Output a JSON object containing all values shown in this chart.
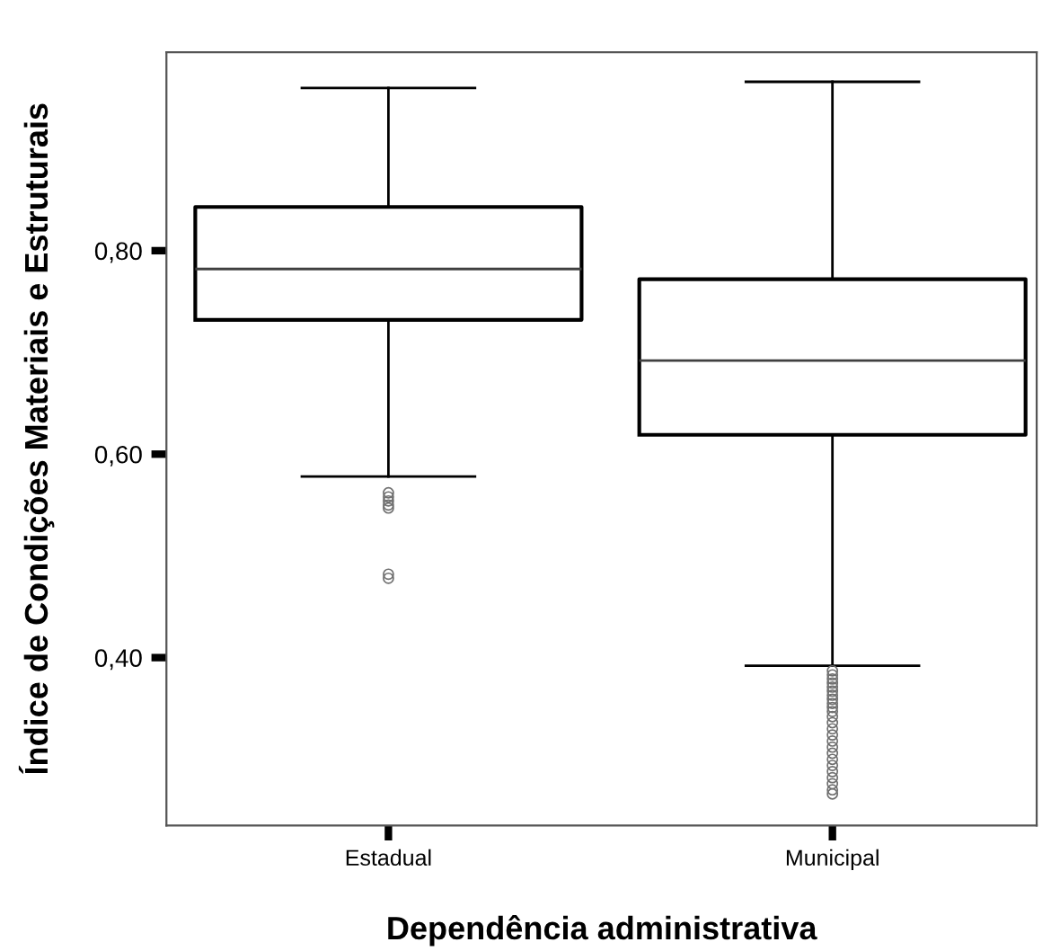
{
  "chart_data": {
    "type": "box",
    "xlabel": "Dependência administrativa",
    "ylabel": "Índice de Condições Materiais e Estruturais",
    "categories": [
      "Estadual",
      "Municipal"
    ],
    "boxes": [
      {
        "low": 0.578,
        "q1": 0.732,
        "median": 0.782,
        "q3": 0.843,
        "high": 0.96,
        "outliers": [
          0.562,
          0.558,
          0.554,
          0.55,
          0.547,
          0.482,
          0.478
        ]
      },
      {
        "low": 0.392,
        "q1": 0.619,
        "median": 0.692,
        "q3": 0.772,
        "high": 0.966,
        "outliers": [
          0.387,
          0.383,
          0.379,
          0.375,
          0.371,
          0.367,
          0.363,
          0.359,
          0.355,
          0.351,
          0.347,
          0.342,
          0.336,
          0.33,
          0.324,
          0.318,
          0.312,
          0.306,
          0.3,
          0.294,
          0.288,
          0.282,
          0.276,
          0.27,
          0.266
        ]
      }
    ],
    "ylim": [
      0.235,
      0.995
    ],
    "yticks": [
      {
        "value": 0.4,
        "label": "0,40"
      },
      {
        "value": 0.6,
        "label": "0,60"
      },
      {
        "value": 0.8,
        "label": "0,80"
      }
    ],
    "grid": false,
    "marker": "circle"
  }
}
